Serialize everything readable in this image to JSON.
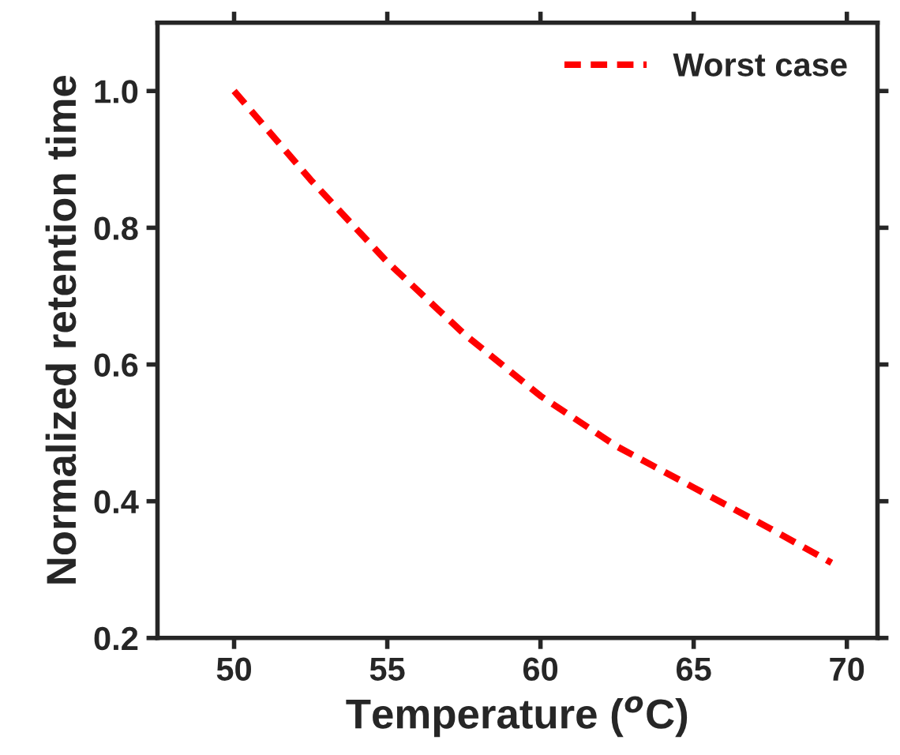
{
  "chart_data": {
    "type": "line",
    "xlabel": "Temperature ($^{o}$C)",
    "ylabel": "Normalized retention time",
    "x": [
      50,
      52.5,
      55,
      57.5,
      60,
      62.5,
      65,
      67.5,
      69.5
    ],
    "series": [
      {
        "name": "Worst case",
        "color": "#ff0000",
        "values": [
          1.0,
          0.87,
          0.75,
          0.645,
          0.554,
          0.48,
          0.42,
          0.36,
          0.31
        ]
      }
    ],
    "xlim": [
      47.5,
      71
    ],
    "xticks": [
      50,
      55,
      60,
      65,
      70
    ],
    "ylim": [
      0.2,
      1.1
    ],
    "yticks": [
      {
        "value": 0.2,
        "label": "0.2"
      },
      {
        "value": 0.4,
        "label": "0.4"
      },
      {
        "value": 0.6,
        "label": "0.6"
      },
      {
        "value": 0.8,
        "label": "0.8"
      },
      {
        "value": 1.0,
        "label": "1.0"
      }
    ],
    "legend": "top right",
    "line_style": "dashed",
    "marker": "none",
    "grid": false
  }
}
